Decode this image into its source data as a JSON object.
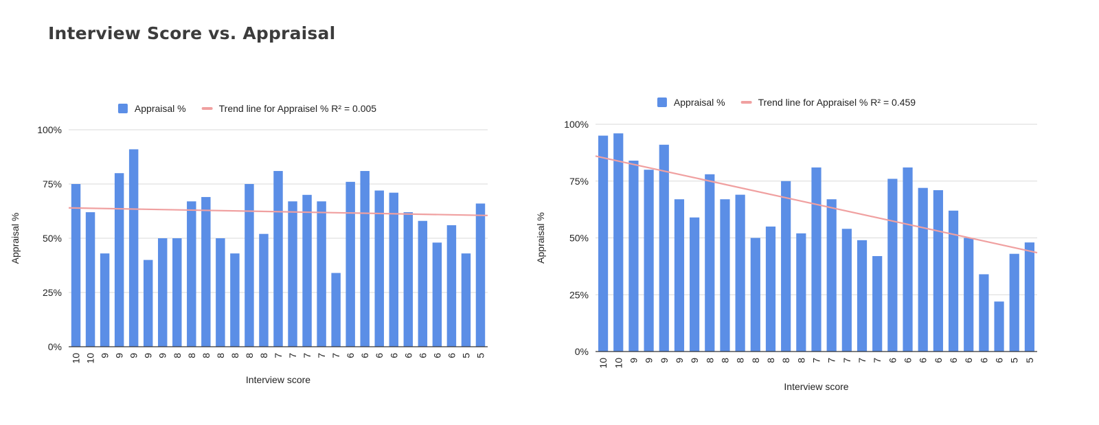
{
  "page": {
    "title": "Interview Score vs. Appraisal"
  },
  "colors": {
    "bar": "#5b8ee6",
    "trend": "#f0a0a0",
    "grid": "#d9d9d9",
    "baseline": "#333333",
    "title": "#3c3c3c"
  },
  "chart_data": [
    {
      "type": "bar",
      "xlabel": "Interview score",
      "ylabel": "Appraisal %",
      "ylim": [
        0,
        100
      ],
      "yticks": [
        "0%",
        "25%",
        "50%",
        "75%",
        "100%"
      ],
      "ytick_values": [
        0,
        25,
        50,
        75,
        100
      ],
      "grid": true,
      "legend_position": "top",
      "categories": [
        "10",
        "10",
        "9",
        "9",
        "9",
        "9",
        "9",
        "8",
        "8",
        "8",
        "8",
        "8",
        "8",
        "8",
        "7",
        "7",
        "7",
        "7",
        "7",
        "6",
        "6",
        "6",
        "6",
        "6",
        "6",
        "6",
        "6",
        "5",
        "5"
      ],
      "series": [
        {
          "name": "Appraisal %",
          "values": [
            75,
            62,
            43,
            80,
            91,
            40,
            50,
            50,
            67,
            69,
            50,
            43,
            75,
            52,
            81,
            67,
            70,
            67,
            34,
            76,
            81,
            72,
            71,
            62,
            58,
            48,
            56,
            43,
            66
          ]
        }
      ],
      "trendline": {
        "name": "Trend line for Appraisel % R² = 0.005",
        "start": 64,
        "end": 60.5
      }
    },
    {
      "type": "bar",
      "xlabel": "Interview score",
      "ylabel": "Appraisal %",
      "ylim": [
        0,
        100
      ],
      "yticks": [
        "0%",
        "25%",
        "50%",
        "75%",
        "100%"
      ],
      "ytick_values": [
        0,
        25,
        50,
        75,
        100
      ],
      "grid": true,
      "legend_position": "top",
      "categories": [
        "10",
        "10",
        "9",
        "9",
        "9",
        "9",
        "9",
        "8",
        "8",
        "8",
        "8",
        "8",
        "8",
        "8",
        "7",
        "7",
        "7",
        "7",
        "7",
        "6",
        "6",
        "6",
        "6",
        "6",
        "6",
        "6",
        "6",
        "5",
        "5"
      ],
      "series": [
        {
          "name": "Appraisal %",
          "values": [
            95,
            96,
            84,
            80,
            91,
            67,
            59,
            78,
            67,
            69,
            50,
            55,
            75,
            52,
            81,
            67,
            54,
            49,
            42,
            76,
            81,
            72,
            71,
            62,
            50,
            34,
            22,
            43,
            48
          ]
        }
      ],
      "trendline": {
        "name": "Trend line for Appraisel % R² = 0.459",
        "start": 86,
        "end": 43.5
      }
    }
  ]
}
